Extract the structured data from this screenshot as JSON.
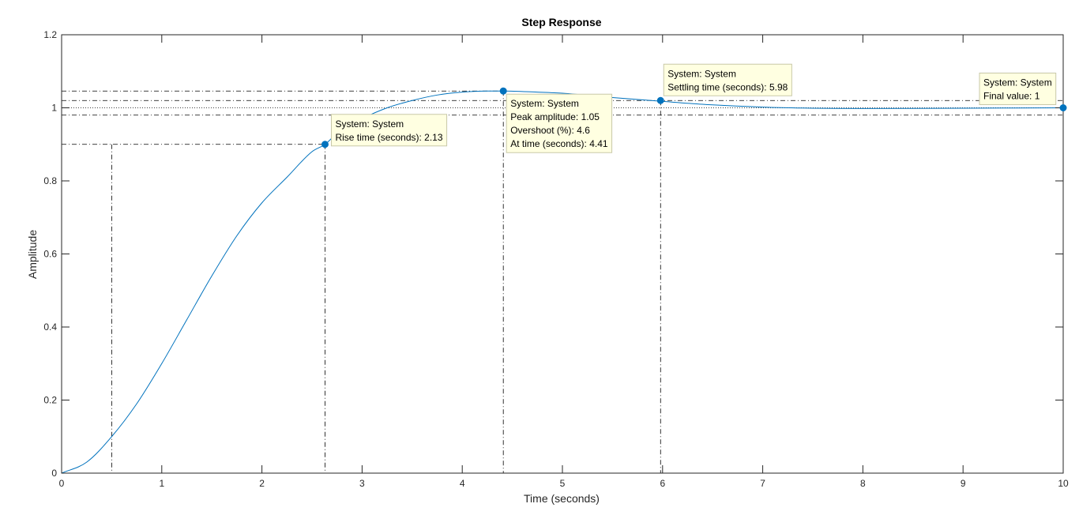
{
  "chart_data": {
    "type": "line",
    "title": "Step Response",
    "xlabel": "Time (seconds)",
    "ylabel": "Amplitude",
    "xlim": [
      0,
      10
    ],
    "ylim": [
      0,
      1.2
    ],
    "grid": false,
    "x_ticks": [
      "0",
      "1",
      "2",
      "3",
      "4",
      "5",
      "6",
      "7",
      "8",
      "9",
      "10"
    ],
    "y_ticks": [
      "0",
      "0.2",
      "0.4",
      "0.6",
      "0.8",
      "1",
      "1.2"
    ],
    "series": [
      {
        "x": [
          0,
          0.25,
          0.5,
          0.75,
          1.0,
          1.25,
          1.5,
          1.75,
          2.0,
          2.25,
          2.5,
          2.63,
          2.75,
          3.0,
          3.25,
          3.5,
          3.75,
          4.0,
          4.25,
          4.41,
          4.75,
          5.0,
          5.5,
          5.98,
          6.5,
          7.0,
          7.5,
          8.0,
          9.0,
          10.0
        ],
        "y": [
          0,
          0.03,
          0.1,
          0.19,
          0.3,
          0.42,
          0.54,
          0.65,
          0.74,
          0.81,
          0.88,
          0.9,
          0.93,
          0.97,
          1.0,
          1.02,
          1.035,
          1.043,
          1.046,
          1.046,
          1.043,
          1.04,
          1.028,
          1.018,
          1.008,
          1.002,
          0.999,
          0.998,
          0.999,
          1.0
        ]
      }
    ],
    "reference_lines": {
      "rise_low": {
        "x": 0.5,
        "y": 0.1
      },
      "rise_high": {
        "x": 2.63,
        "y": 0.9
      },
      "peak": {
        "x": 4.41,
        "y": 1.046
      },
      "settling": {
        "x": 5.98,
        "y": 1.02
      },
      "settling_band": [
        0.98,
        1.02
      ],
      "final_value": 1.0
    },
    "datatips": [
      {
        "name": "rise-time",
        "x": 2.63,
        "y": 0.9,
        "lines": [
          "System: System",
          "Rise time (seconds): 2.13"
        ]
      },
      {
        "name": "peak-amplitude",
        "x": 4.41,
        "y": 1.046,
        "lines": [
          "System: System",
          "Peak amplitude: 1.05",
          "Overshoot (%): 4.6",
          "At time (seconds): 4.41"
        ]
      },
      {
        "name": "settling-time",
        "x": 5.98,
        "y": 1.02,
        "lines": [
          "System: System",
          "Settling time (seconds): 5.98"
        ]
      },
      {
        "name": "final-value",
        "x": 10,
        "y": 1.0,
        "lines": [
          "System: System",
          "Final value: 1"
        ]
      }
    ],
    "colors": {
      "line": "#0072bd",
      "marker": "#0072bd",
      "axes": "#262626",
      "ref_lines": "#000000",
      "tip_bg": "#ffffe1",
      "tip_border": "#c8c8a8"
    }
  }
}
